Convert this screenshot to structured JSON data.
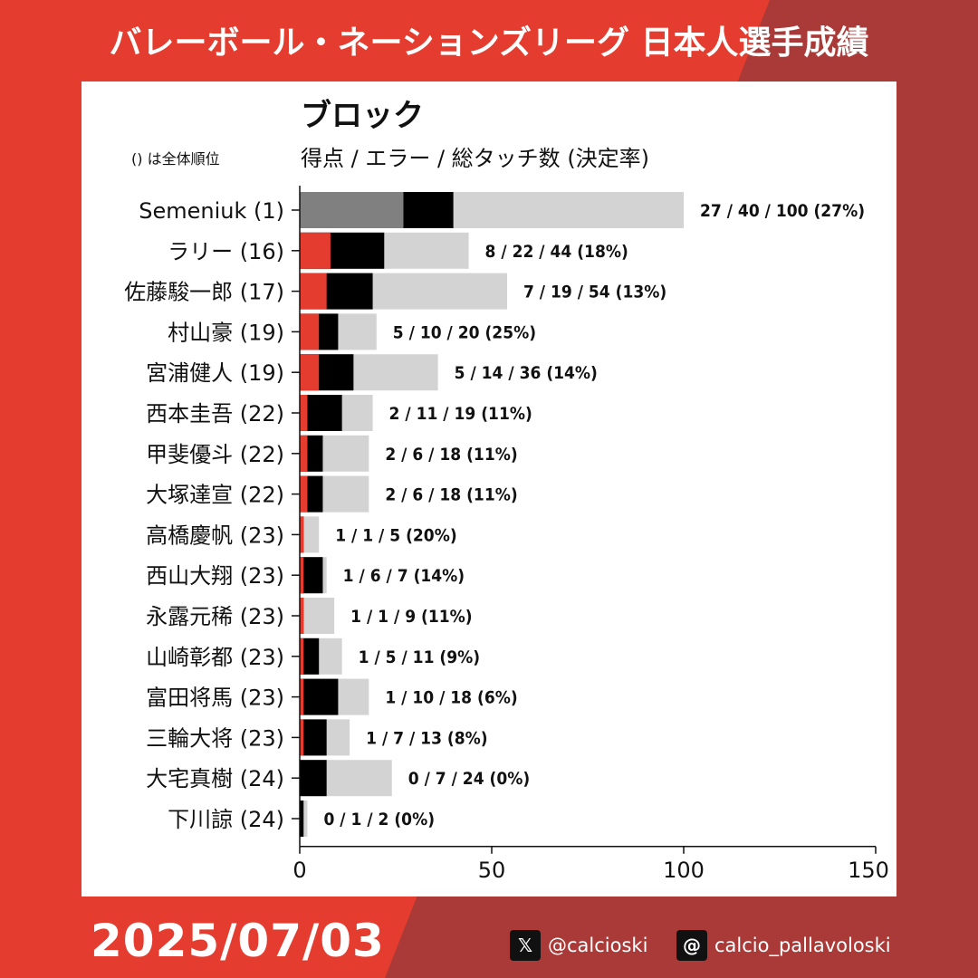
{
  "header": {
    "title": "バレーボール・ネーションズリーグ 日本人選手成績"
  },
  "chart": {
    "title": "ブロック",
    "subtitle": "得点 / エラー / 総タッチ数 (決定率)",
    "rank_note": "() は全体順位"
  },
  "footer": {
    "date": "2025/07/03",
    "x_handle": "@calcioski",
    "threads_handle": "calcio_pallavoloski",
    "x_icon": "x-logo-icon",
    "threads_icon": "threads-logo-icon"
  },
  "colors": {
    "background": "#e43d30",
    "background_dark": "#a93a37",
    "points": "#e43d30",
    "points_top": "#808080",
    "errors": "#000000",
    "total": "#d3d3d3"
  },
  "chart_data": {
    "type": "bar",
    "orientation": "horizontal",
    "stacked": "overlay",
    "xlim": [
      0,
      150
    ],
    "xticks": [
      "0",
      "50",
      "100",
      "150"
    ],
    "categories": [
      "Semeniuk (1)",
      "ラリー (16)",
      "佐藤駿一郎 (17)",
      "村山豪 (19)",
      "宮浦健人 (19)",
      "西本圭吾 (22)",
      "甲斐優斗 (22)",
      "大塚達宣 (22)",
      "高橋慶帆 (23)",
      "西山大翔 (23)",
      "永露元稀 (23)",
      "山崎彰都 (23)",
      "富田将馬 (23)",
      "三輪大将 (23)",
      "大宅真樹 (24)",
      "下川諒 (24)"
    ],
    "series": [
      {
        "values": [
          27,
          8,
          7,
          5,
          5,
          2,
          2,
          2,
          1,
          1,
          1,
          1,
          1,
          1,
          0,
          0
        ]
      },
      {
        "values": [
          40,
          22,
          19,
          10,
          14,
          11,
          6,
          6,
          1,
          6,
          1,
          5,
          10,
          7,
          7,
          1
        ]
      },
      {
        "values": [
          100,
          44,
          54,
          20,
          36,
          19,
          18,
          18,
          5,
          7,
          9,
          11,
          18,
          13,
          24,
          2
        ]
      }
    ],
    "data_labels": [
      "27 / 40 / 100 (27%)",
      "8 / 22 / 44 (18%)",
      "7 / 19 / 54 (13%)",
      "5 / 10 / 20 (25%)",
      "5 / 14 / 36 (14%)",
      "2 / 11 / 19 (11%)",
      "2 / 6 / 18 (11%)",
      "2 / 6 / 18 (11%)",
      "1 / 1 / 5 (20%)",
      "1 / 6 / 7 (14%)",
      "1 / 1 / 9 (11%)",
      "1 / 5 / 11 (9%)",
      "1 / 10 / 18 (6%)",
      "1 / 7 / 13 (8%)",
      "0 / 7 / 24 (0%)",
      "0 / 1 / 2 (0%)"
    ]
  }
}
